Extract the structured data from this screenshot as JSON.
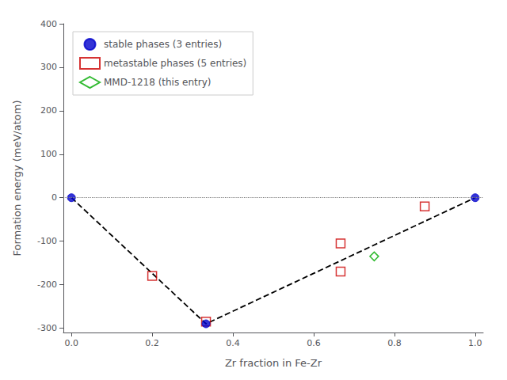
{
  "chart_data": {
    "type": "scatter",
    "xlabel": "Zr fraction in Fe-Zr",
    "ylabel": "Formation energy (meV/atom)",
    "xlim": [
      -0.02,
      1.02
    ],
    "ylim": [
      -310,
      400
    ],
    "xticks": [
      {
        "value": 0.0,
        "label": "0.0"
      },
      0.2,
      0.4,
      0.6,
      0.8,
      {
        "value": 1.0,
        "label": "1.0"
      }
    ],
    "yticks": [
      -300,
      -200,
      -100,
      0,
      100,
      200,
      300,
      400
    ],
    "grid": false,
    "legend": "upper left",
    "series": [
      {
        "name": "stable phases (3 entries)",
        "type": "scatter",
        "marker": "circle",
        "color": "#0000cc",
        "x": [
          0.0,
          0.3333,
          1.0
        ],
        "values": [
          0.0,
          -290.0,
          0.0
        ]
      },
      {
        "name": "metastable phases (5 entries)",
        "type": "scatter",
        "marker": "open square",
        "color": "#cc0000",
        "x": [
          0.2,
          0.3333,
          0.6667,
          0.6667,
          0.875
        ],
        "values": [
          -180.0,
          -285.0,
          -105.0,
          -170.0,
          -20.0
        ]
      },
      {
        "name": "MMD-1218 (this entry)",
        "type": "scatter",
        "marker": "open diamond",
        "color": "#00aa00",
        "x": [
          0.75
        ],
        "values": [
          -135.0
        ]
      },
      {
        "type": "line",
        "line_style": "dashed",
        "color": "black",
        "x": [
          0.0,
          0.3333,
          1.0
        ],
        "values": [
          0.0,
          -290.0,
          0.0
        ]
      },
      {
        "type": "hline",
        "line_style": "dotted",
        "color": "gray",
        "values": [
          0.0
        ]
      }
    ]
  }
}
